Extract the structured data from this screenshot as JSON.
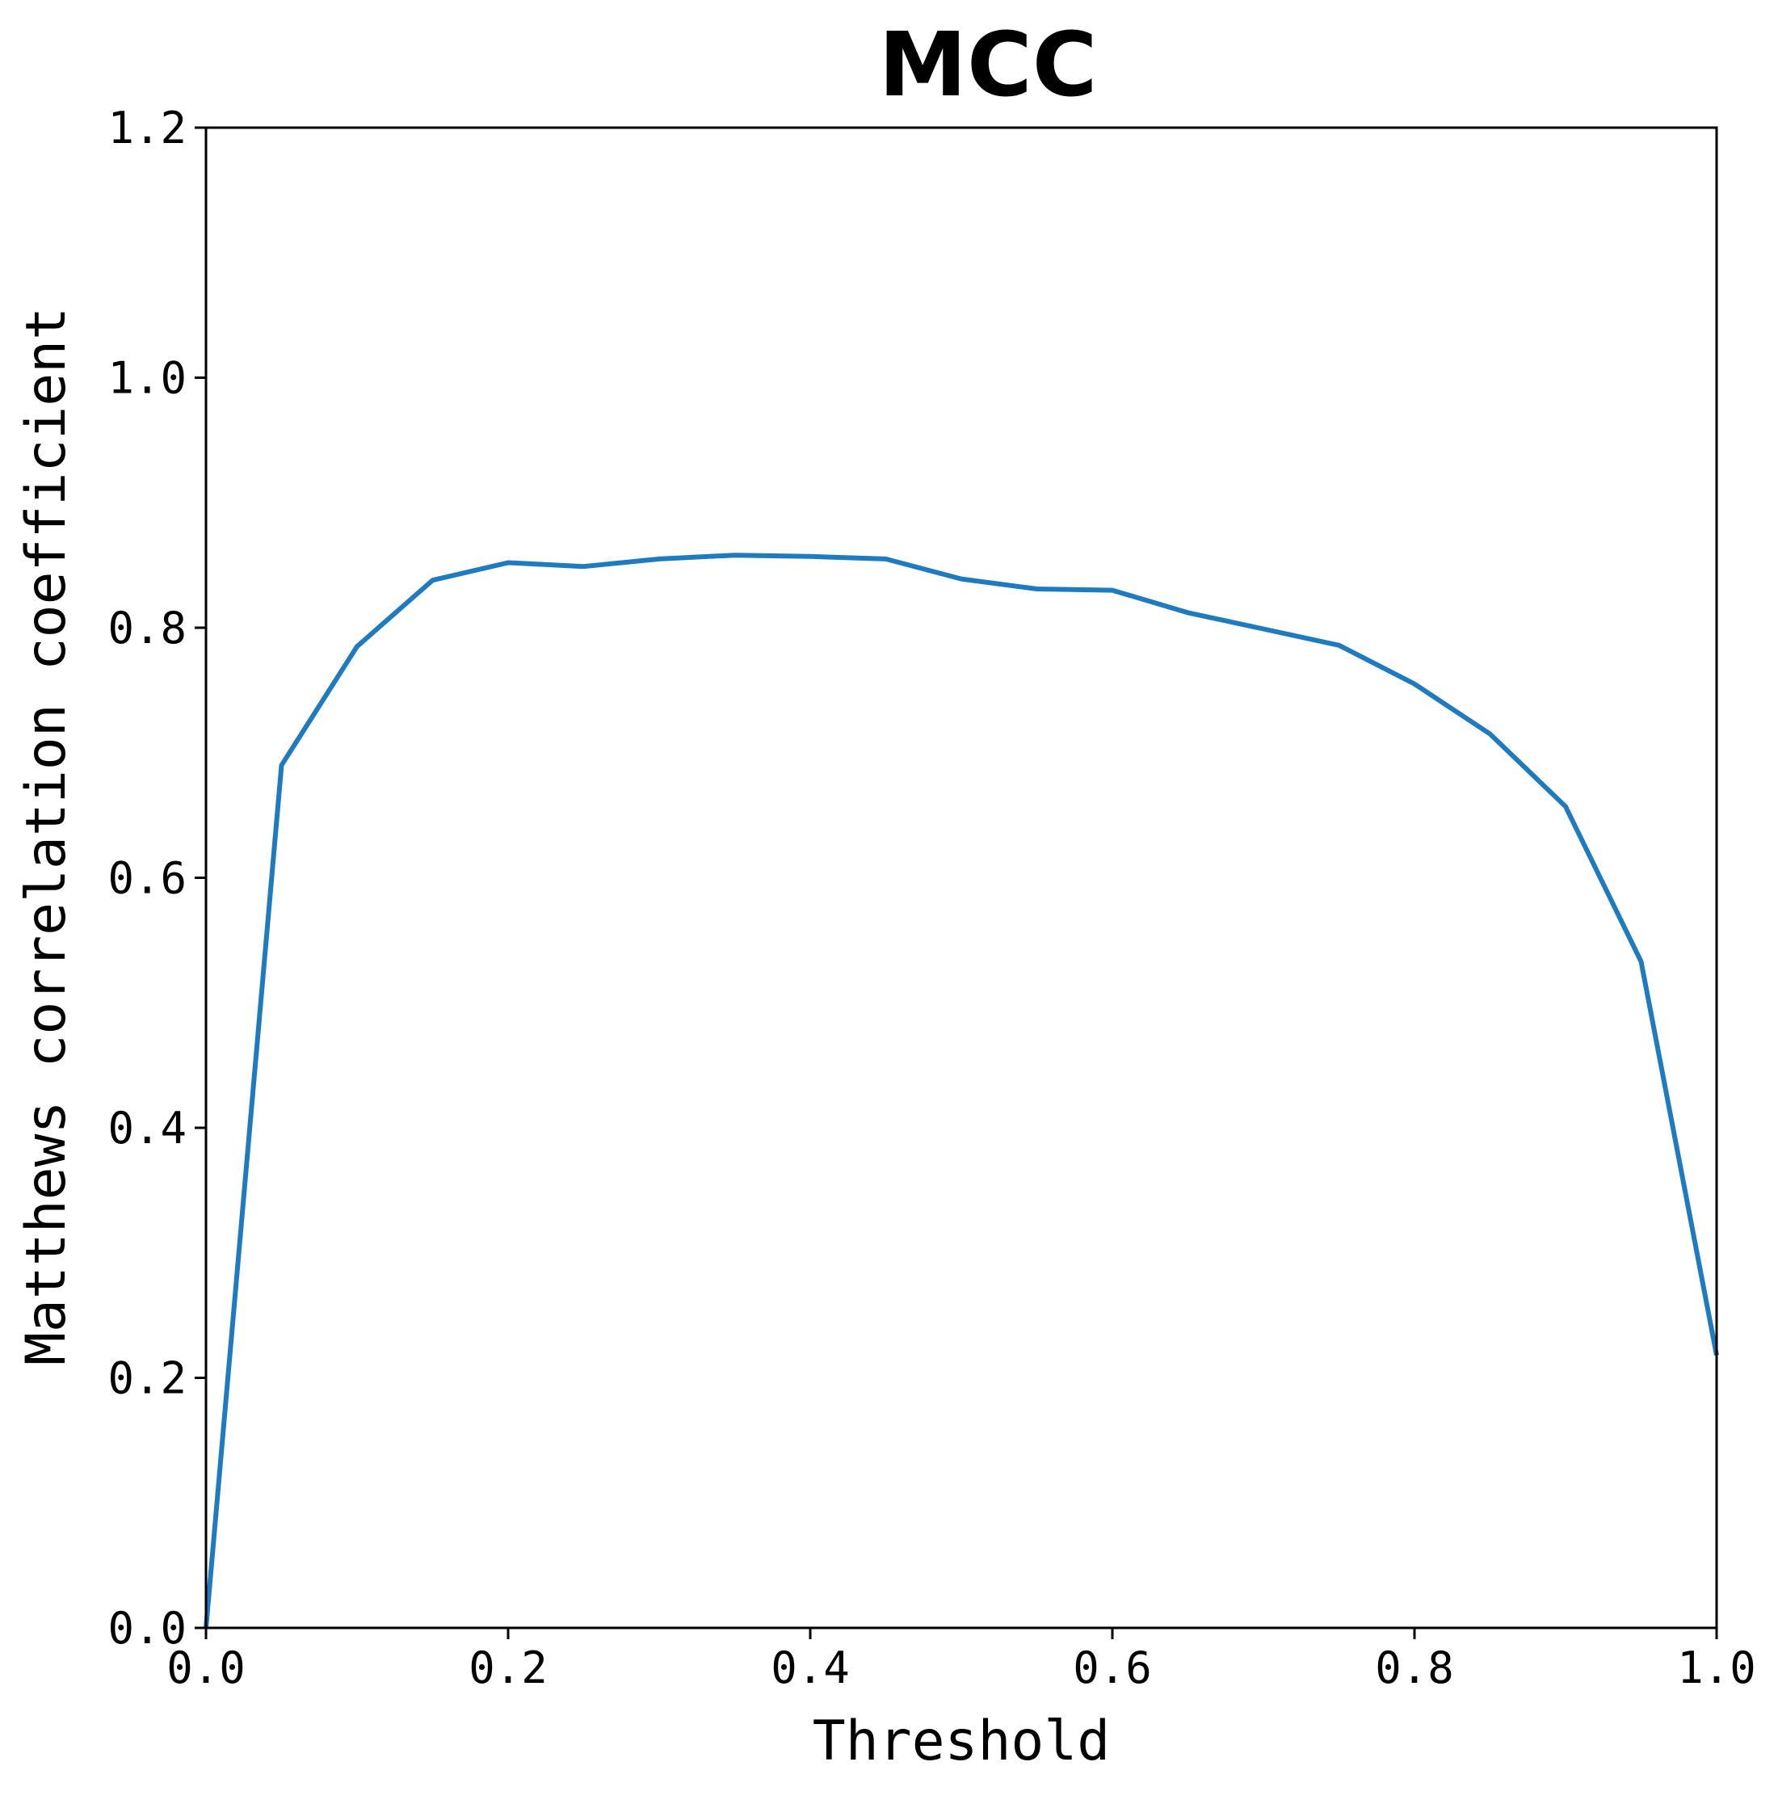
{
  "chart_data": {
    "type": "line",
    "title": "MCC",
    "xlabel": "Threshold",
    "ylabel": "Matthews correlation coefficient",
    "xlim": [
      0.0,
      1.0
    ],
    "ylim": [
      0.0,
      1.2
    ],
    "xticks": [
      "0.0",
      "0.2",
      "0.4",
      "0.6",
      "0.8",
      "1.0"
    ],
    "yticks": [
      "0.0",
      "0.2",
      "0.4",
      "0.6",
      "0.8",
      "1.0",
      "1.2"
    ],
    "grid": false,
    "line_color": "#1f7bbf",
    "series": [
      {
        "x": [
          0.0,
          0.05,
          0.1,
          0.15,
          0.2,
          0.25,
          0.3,
          0.35,
          0.4,
          0.45,
          0.5,
          0.55,
          0.6,
          0.65,
          0.7,
          0.75,
          0.8,
          0.85,
          0.9,
          0.95,
          1.0
        ],
        "values": [
          0.0,
          0.69,
          0.785,
          0.838,
          0.852,
          0.849,
          0.855,
          0.858,
          0.857,
          0.855,
          0.839,
          0.831,
          0.83,
          0.812,
          0.799,
          0.786,
          0.755,
          0.715,
          0.657,
          0.533,
          0.218
        ]
      }
    ]
  }
}
